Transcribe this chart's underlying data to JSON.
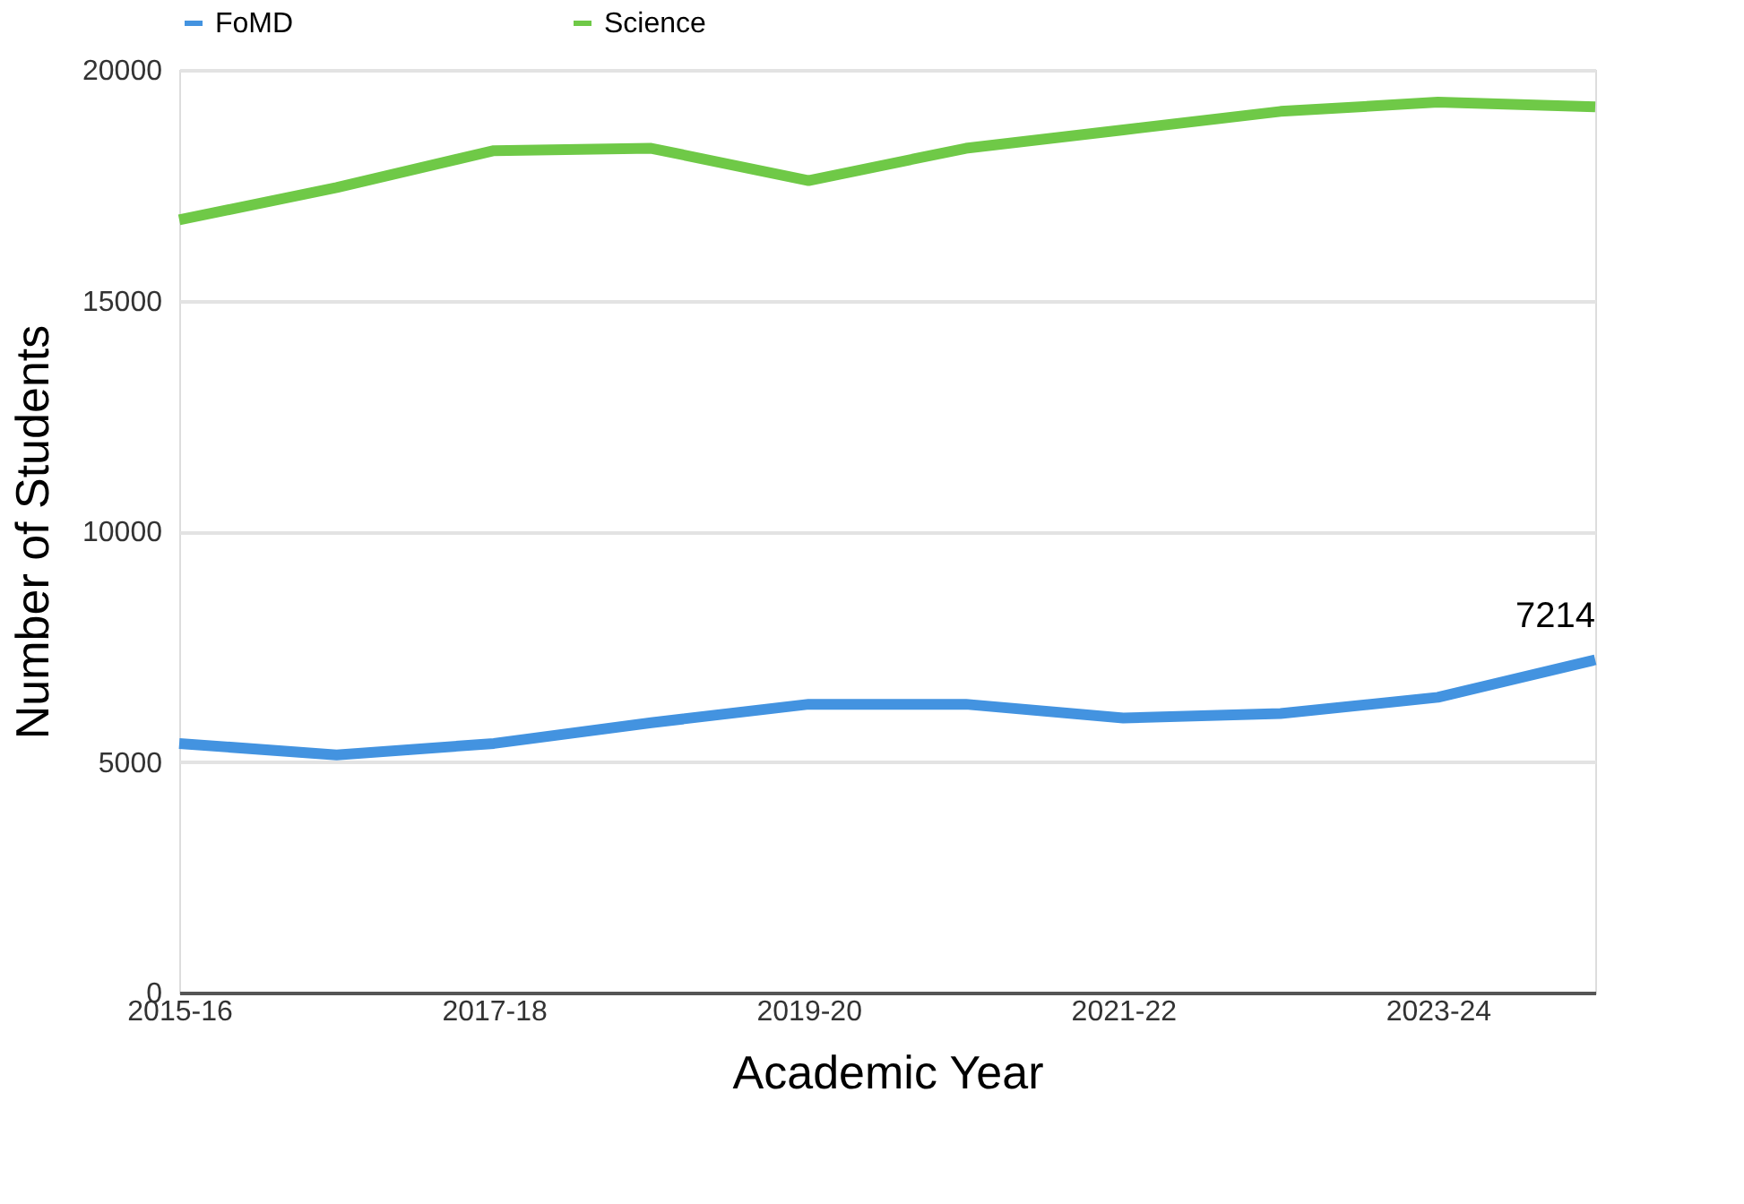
{
  "chart_data": {
    "type": "line",
    "xlabel": "Academic Year",
    "ylabel": "Number of Students",
    "categories": [
      "2015-16",
      null,
      "2017-18",
      null,
      "2019-20",
      null,
      "2021-22",
      null,
      "2023-24",
      null
    ],
    "series": [
      {
        "name": "FoMD",
        "color": "#4393e0",
        "values": [
          5400,
          5150,
          5400,
          5850,
          6250,
          6250,
          5950,
          6050,
          6400,
          7214
        ],
        "value_labels": [
          null,
          null,
          null,
          null,
          null,
          null,
          null,
          null,
          null,
          "7214"
        ]
      },
      {
        "name": "Science",
        "color": "#6fc947",
        "values": [
          16750,
          17450,
          18250,
          18300,
          17600,
          18300,
          18700,
          19100,
          19300,
          19200
        ]
      }
    ],
    "ylim": [
      0,
      20000
    ],
    "yticks": [
      0,
      5000,
      10000,
      15000,
      20000
    ],
    "grid": "y",
    "legend": "top",
    "marker": "none",
    "line_style": "solid"
  }
}
